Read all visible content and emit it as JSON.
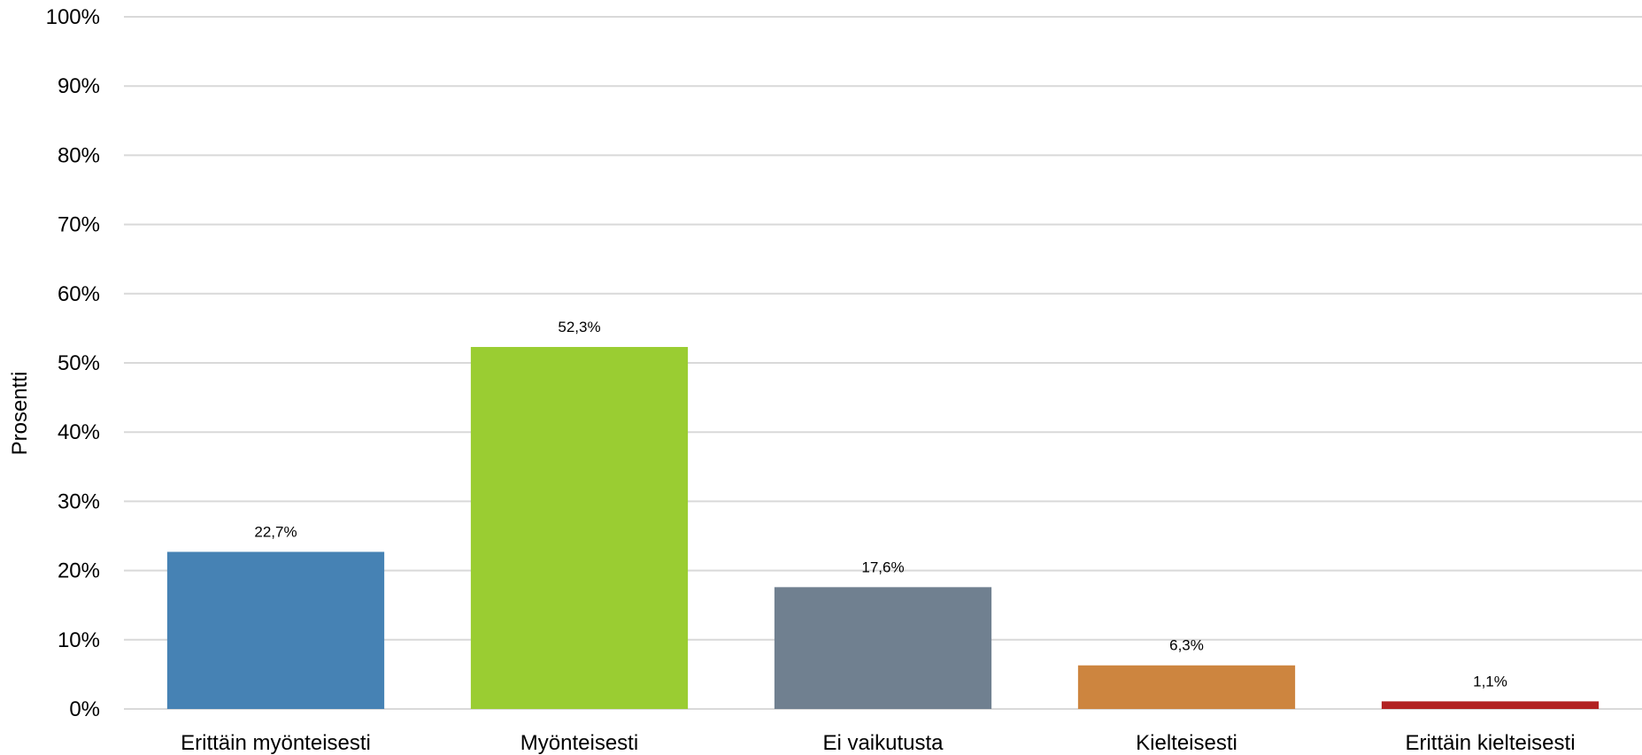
{
  "chart_data": {
    "type": "bar",
    "categories": [
      "Erittäin myönteisesti",
      "Myönteisesti",
      "Ei vaikutusta",
      "Kielteisesti",
      "Erittäin kielteisesti"
    ],
    "values": [
      22.7,
      52.3,
      17.6,
      6.3,
      1.1
    ],
    "value_labels": [
      "22,7%",
      "52,3%",
      "17,6%",
      "6,3%",
      "1,1%"
    ],
    "colors": [
      "#4682b4",
      "#9acd32",
      "#708090",
      "#cd853f",
      "#b22222"
    ],
    "title": "",
    "xlabel": "",
    "ylabel": "Prosentti",
    "ylim": [
      0,
      100
    ],
    "yticks": [
      0,
      10,
      20,
      30,
      40,
      50,
      60,
      70,
      80,
      90,
      100
    ],
    "ytick_labels": [
      "0%",
      "10%",
      "20%",
      "30%",
      "40%",
      "50%",
      "60%",
      "70%",
      "80%",
      "90%",
      "100%"
    ],
    "grid": true,
    "legend": "none"
  }
}
